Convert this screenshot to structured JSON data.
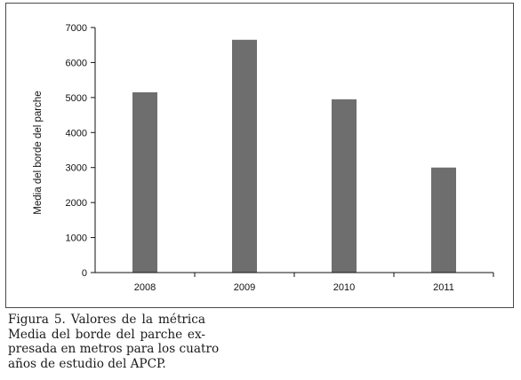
{
  "chart_data": {
    "type": "bar",
    "categories": [
      "2008",
      "2009",
      "2010",
      "2011"
    ],
    "values": [
      5150,
      6650,
      4950,
      3000
    ],
    "ylabel": "Media del borde del parche",
    "xlabel": "",
    "ylim": [
      0,
      7000
    ],
    "yticks": [
      0,
      1000,
      2000,
      3000,
      4000,
      5000,
      6000,
      7000
    ],
    "grid": false,
    "legend": "none",
    "bar_color": "#6e6e6e"
  },
  "caption": {
    "lines": [
      "Figura 5. Valores de la métrica",
      "Media del borde del parche ex-",
      "presada en metros para los cuatro",
      "años de estudio del APCP."
    ]
  }
}
